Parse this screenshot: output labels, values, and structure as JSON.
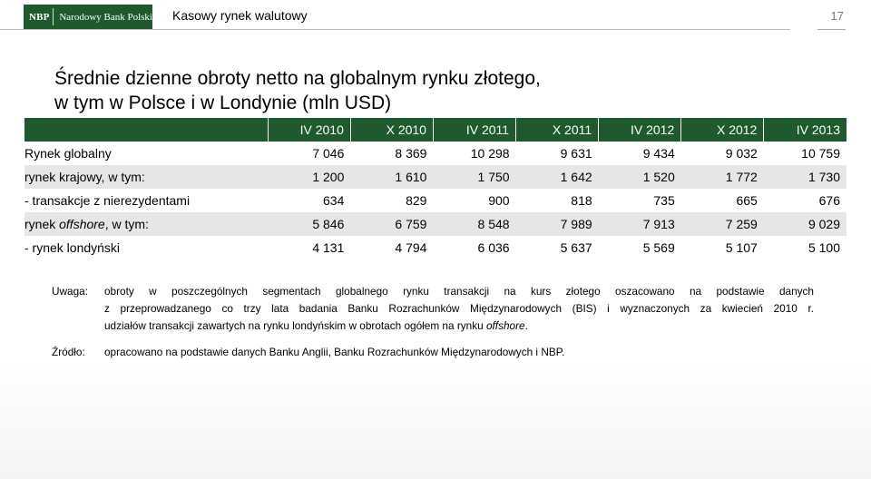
{
  "header": {
    "logo_mark": "NBP",
    "logo_name": "Narodowy Bank Polski",
    "section_title": "Kasowy rynek walutowy",
    "page_number": "17"
  },
  "title": {
    "line1": "Średnie dzienne obroty netto na globalnym rynku złotego,",
    "line2": "w tym w Polsce i w Londynie (mln USD)"
  },
  "table": {
    "columns": [
      "IV 2010",
      "X 2010",
      "IV 2011",
      "X 2011",
      "IV 2012",
      "X 2012",
      "IV 2013"
    ],
    "rows": [
      {
        "label": "Rynek globalny",
        "values": [
          "7 046",
          "8 369",
          "10 298",
          "9 631",
          "9 434",
          "9 032",
          "10 759"
        ]
      },
      {
        "label": "rynek krajowy, w tym:",
        "values": [
          "1 200",
          "1 610",
          "1 750",
          "1 642",
          "1 520",
          "1 772",
          "1 730"
        ]
      },
      {
        "label": "- transakcje z nierezydentami",
        "values": [
          "634",
          "829",
          "900",
          "818",
          "735",
          "665",
          "676"
        ]
      },
      {
        "label_pre": "rynek ",
        "label_italic": "offshore",
        "label_post": ", w tym:",
        "values": [
          "5 846",
          "6 759",
          "8 548",
          "7 989",
          "7 913",
          "7 259",
          "9 029"
        ]
      },
      {
        "label": "- rynek londyński",
        "values": [
          "4 131",
          "4 794",
          "6 036",
          "5 637",
          "5 569",
          "5 107",
          "5 100"
        ]
      }
    ]
  },
  "notes": {
    "note_label": "Uwaga:",
    "note_line1": "obroty w poszczególnych segmentach globalnego rynku transakcji na kurs złotego oszacowano na podstawie danych",
    "note_line2": "z przeprowadzanego co trzy lata badania Banku Rozrachunków Międzynarodowych (BIS) i wyznaczonych za kwiecień 2010 r.",
    "note_line3_pre": "udziałów transakcji zawartych na rynku londyńskim w obrotach ogółem na rynku ",
    "note_line3_italic": "offshore",
    "note_line3_post": ".",
    "source_label": "Źródło:",
    "source_text": "opracowano na podstawie danych Banku Anglii, Banku Rozrachunków Międzynarodowych i NBP."
  },
  "colors": {
    "brand_green": "#1e5a2e",
    "row_shade": "#e6e6e6"
  }
}
